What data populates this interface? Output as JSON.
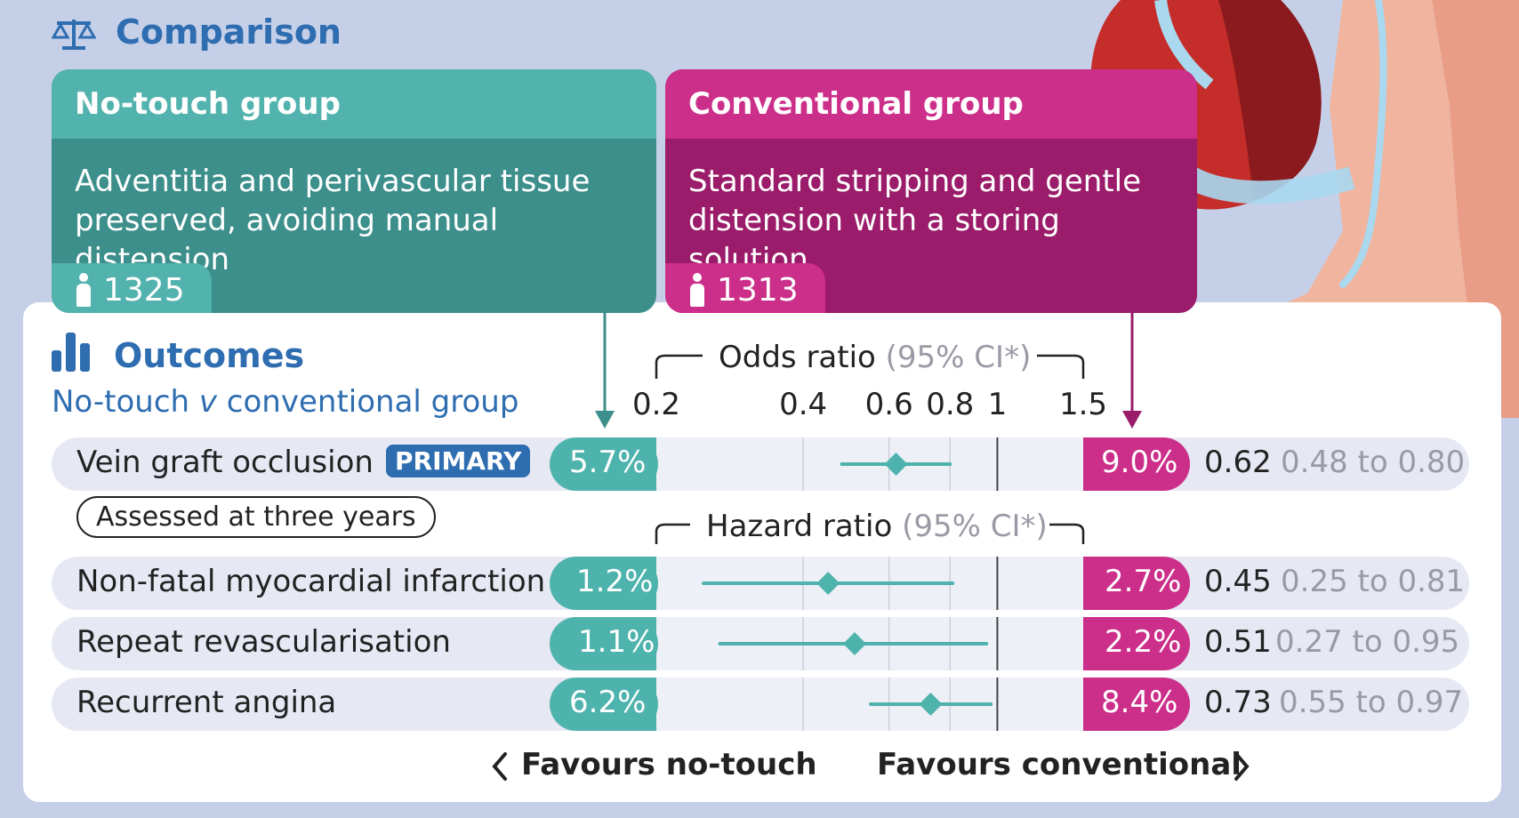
{
  "header": {
    "title": "Comparison"
  },
  "groups": {
    "no_touch": {
      "title": "No-touch group",
      "description": "Adventitia and perivascular tissue preserved, avoiding manual distension",
      "n": "1325"
    },
    "conventional": {
      "title": "Conventional group",
      "description": "Standard stripping and gentle distension with a storing solution",
      "n": "1313"
    }
  },
  "outcomes": {
    "title": "Outcomes",
    "subtitle_main": "No-touch ",
    "subtitle_v": "v",
    "subtitle_rest": " conventional group",
    "primary_badge": "PRIMARY",
    "assessed_note": "Assessed at three years",
    "odds_title": "Odds ratio",
    "hazard_title": "Hazard ratio",
    "ci_label": "(95% CI*)",
    "favours_left": "Favours no-touch",
    "favours_right": "Favours conventional"
  },
  "colors": {
    "teal": "#4fb3ad",
    "magenta": "#cc2f8a",
    "blue": "#2e6db0"
  },
  "chart_data": {
    "type": "forest",
    "scale": "log",
    "xlim": [
      0.2,
      1.5
    ],
    "ticks": [
      "0.2",
      "0.4",
      "0.6",
      "0.8",
      "1",
      "1.5"
    ],
    "tick_values": [
      0.2,
      0.4,
      0.6,
      0.8,
      1,
      1.5
    ],
    "reference": 1,
    "rows": [
      {
        "label": "Vein graft occlusion",
        "no_touch": "5.7%",
        "conventional": "9.0%",
        "estimate": 0.62,
        "est_label": "0.62",
        "ci_low": 0.48,
        "ci_high": 0.8,
        "ci_label": "0.48 to 0.80",
        "measure": "odds"
      },
      {
        "label": "Non-fatal myocardial infarction",
        "no_touch": "1.2%",
        "conventional": "2.7%",
        "estimate": 0.45,
        "est_label": "0.45",
        "ci_low": 0.25,
        "ci_high": 0.81,
        "ci_label": "0.25 to 0.81",
        "measure": "hazard"
      },
      {
        "label": "Repeat revascularisation",
        "no_touch": "1.1%",
        "conventional": "2.2%",
        "estimate": 0.51,
        "est_label": "0.51",
        "ci_low": 0.27,
        "ci_high": 0.95,
        "ci_label": "0.27 to 0.95",
        "measure": "hazard"
      },
      {
        "label": "Recurrent angina",
        "no_touch": "6.2%",
        "conventional": "8.4%",
        "estimate": 0.73,
        "est_label": "0.73",
        "ci_low": 0.55,
        "ci_high": 0.97,
        "ci_label": "0.55 to 0.97",
        "measure": "hazard"
      }
    ]
  }
}
